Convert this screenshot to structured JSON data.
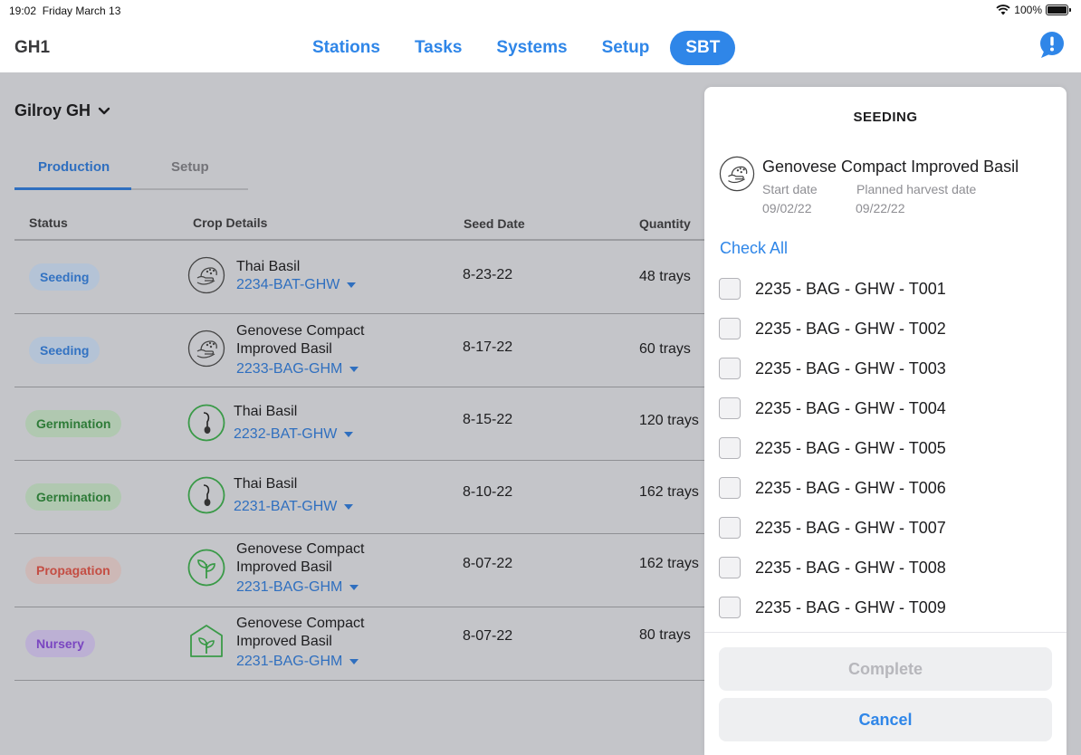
{
  "status_bar": {
    "time": "19:02",
    "date": "Friday March 13",
    "battery": "100%"
  },
  "header": {
    "title": "GH1",
    "nav": [
      "Stations",
      "Tasks",
      "Systems",
      "Setup",
      "SBT"
    ],
    "active_nav": "SBT",
    "alert_icon": "alert-bubble-icon"
  },
  "site": {
    "name": "Gilroy GH"
  },
  "tabs": [
    "Production",
    "Setup"
  ],
  "table": {
    "headers": [
      "Status",
      "Crop Details",
      "Seed Date",
      "Quantity"
    ],
    "rows": [
      {
        "status": "Seeding",
        "crop": "Thai Basil",
        "batch": "2234-BAT-GHW",
        "seed_date": "8-23-22",
        "quantity": "48 trays"
      },
      {
        "status": "Seeding",
        "crop": "Genovese Compact Improved Basil",
        "batch": "2233-BAG-GHM",
        "seed_date": "8-17-22",
        "quantity": "60 trays"
      },
      {
        "status": "Germination",
        "crop": "Thai Basil",
        "batch": "2232-BAT-GHW",
        "seed_date": "8-15-22",
        "quantity": "120 trays"
      },
      {
        "status": "Germination",
        "crop": "Thai Basil",
        "batch": "2231-BAT-GHW",
        "seed_date": "8-10-22",
        "quantity": "162 trays"
      },
      {
        "status": "Propagation",
        "crop": "Genovese Compact Improved Basil",
        "batch": "2231-BAG-GHM",
        "seed_date": "8-07-22",
        "quantity": "162 trays"
      },
      {
        "status": "Nursery",
        "crop": "Genovese Compact Improved Basil",
        "batch": "2231-BAG-GHM",
        "seed_date": "8-07-22",
        "quantity": "80 trays"
      }
    ]
  },
  "panel": {
    "title": "SEEDING",
    "crop": "Genovese Compact Improved Basil",
    "start_label": "Start date",
    "start_value": "09/02/22",
    "harvest_label": "Planned harvest date",
    "harvest_value": "09/22/22",
    "check_all": "Check All",
    "trays": [
      "2235 - BAG - GHW - T001",
      "2235 - BAG - GHW - T002",
      "2235 - BAG - GHW - T003",
      "2235 - BAG - GHW - T004",
      "2235 - BAG - GHW - T005",
      "2235 - BAG - GHW - T006",
      "2235 - BAG - GHW - T007",
      "2235 - BAG - GHW - T008",
      "2235 - BAG - GHW - T009"
    ],
    "complete": "Complete",
    "cancel": "Cancel"
  },
  "colors": {
    "accent": "#2f86e8",
    "link": "#2f6fbf",
    "overlay": "#c4c5c9"
  }
}
